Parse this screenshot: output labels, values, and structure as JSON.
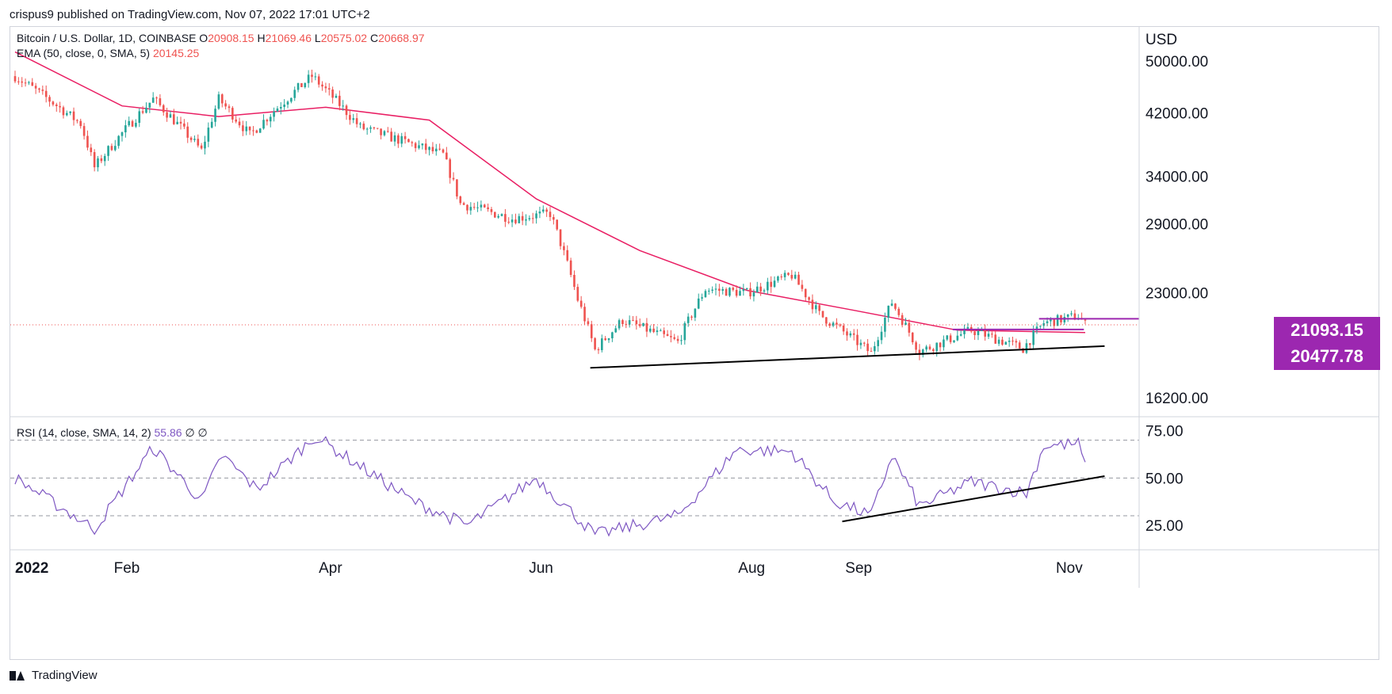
{
  "header": {
    "text": "crispus9 published on TradingView.com, Nov 07, 2022 17:01 UTC+2"
  },
  "legend": {
    "symbol": "Bitcoin / U.S. Dollar, 1D, COINBASE",
    "open_label": "O",
    "open": "20908.15",
    "high_label": "H",
    "high": "21069.46",
    "low_label": "L",
    "low": "20575.02",
    "close_label": "C",
    "close": "20668.97",
    "ema_label": "EMA (50, close, 0, SMA, 5)",
    "ema_value": "20145.25",
    "rsi_label": "RSI (14, close, SMA, 14, 2)",
    "rsi_value": "55.86",
    "rsi_extra": "∅ ∅"
  },
  "price_tags": {
    "upper": "21093.15",
    "lower": "20477.78"
  },
  "footer": {
    "brand": "TradingView"
  },
  "colors": {
    "up": "#26a69a",
    "down": "#ef5350",
    "ema": "#e91e63",
    "rsi": "#7e57c2",
    "tag": "#9c27b0",
    "trendline": "#000000",
    "level": "#9c27b0"
  },
  "chart_data": [
    {
      "type": "candlestick",
      "title": "Bitcoin / U.S. Dollar, 1D, COINBASE",
      "y_axis_unit": "USD",
      "y_scale": "log",
      "y_ticks": [
        "50000.00",
        "42000.00",
        "34000.00",
        "29000.00",
        "23000.00",
        "16200.00"
      ],
      "ylim": [
        15200,
        56000
      ],
      "x_ticks": [
        "2022",
        "Feb",
        "Apr",
        "Jun",
        "Aug",
        "Sep",
        "Nov"
      ],
      "x_tick_dates": [
        "2022-01-01",
        "2022-02-01",
        "2022-04-01",
        "2022-06-01",
        "2022-08-01",
        "2022-09-01",
        "2022-11-01"
      ],
      "xlim": [
        "2022-01-01",
        "2022-11-24"
      ],
      "key_points": [
        {
          "date": "2022-01-01",
          "close": 47500
        },
        {
          "date": "2022-01-20",
          "close": 40500
        },
        {
          "date": "2022-01-24",
          "close": 35000
        },
        {
          "date": "2022-02-10",
          "close": 44000
        },
        {
          "date": "2022-02-24",
          "close": 37000
        },
        {
          "date": "2022-03-01",
          "close": 44000
        },
        {
          "date": "2022-03-10",
          "close": 39000
        },
        {
          "date": "2022-03-28",
          "close": 47500
        },
        {
          "date": "2022-04-11",
          "close": 40000
        },
        {
          "date": "2022-05-05",
          "close": 36500
        },
        {
          "date": "2022-05-10",
          "close": 31000
        },
        {
          "date": "2022-05-25",
          "close": 29500
        },
        {
          "date": "2022-06-05",
          "close": 30000
        },
        {
          "date": "2022-06-13",
          "close": 22500
        },
        {
          "date": "2022-06-18",
          "close": 19000
        },
        {
          "date": "2022-06-26",
          "close": 21000
        },
        {
          "date": "2022-07-12",
          "close": 19500
        },
        {
          "date": "2022-07-20",
          "close": 23300
        },
        {
          "date": "2022-08-01",
          "close": 23000
        },
        {
          "date": "2022-08-14",
          "close": 24400
        },
        {
          "date": "2022-08-22",
          "close": 21400
        },
        {
          "date": "2022-09-06",
          "close": 18800
        },
        {
          "date": "2022-09-12",
          "close": 22300
        },
        {
          "date": "2022-09-20",
          "close": 18900
        },
        {
          "date": "2022-10-05",
          "close": 20300
        },
        {
          "date": "2022-10-20",
          "close": 19100
        },
        {
          "date": "2022-10-26",
          "close": 20800
        },
        {
          "date": "2022-11-05",
          "close": 21300
        },
        {
          "date": "2022-11-07",
          "close": 20669
        }
      ],
      "ema": {
        "name": "EMA (50, close, 0, SMA, 5)",
        "points": [
          {
            "date": "2022-01-01",
            "value": 51500
          },
          {
            "date": "2022-02-01",
            "value": 43000
          },
          {
            "date": "2022-03-01",
            "value": 41500
          },
          {
            "date": "2022-04-01",
            "value": 42800
          },
          {
            "date": "2022-05-01",
            "value": 41000
          },
          {
            "date": "2022-06-01",
            "value": 31500
          },
          {
            "date": "2022-07-01",
            "value": 26500
          },
          {
            "date": "2022-08-01",
            "value": 23200
          },
          {
            "date": "2022-09-01",
            "value": 21700
          },
          {
            "date": "2022-10-01",
            "value": 20300
          },
          {
            "date": "2022-11-07",
            "value": 20145
          }
        ]
      },
      "trendline": {
        "start": {
          "date": "2022-06-18",
          "value": 17900
        },
        "end": {
          "date": "2022-11-14",
          "value": 19250
        }
      },
      "resistance": {
        "start": {
          "date": "2022-10-01",
          "value": 20350
        },
        "end": {
          "date": "2022-11-08",
          "value": 20350
        }
      },
      "resistance_upper": {
        "start": {
          "date": "2022-10-26",
          "value": 21093.15
        },
        "end": {
          "date": "2022-11-08",
          "value": 21093.15
        }
      },
      "current_price": 20668.97
    },
    {
      "type": "line",
      "title": "RSI (14, close, SMA, 14, 2)",
      "y_ticks": [
        "75.00",
        "50.00",
        "25.00"
      ],
      "ylim": [
        12,
        82
      ],
      "reference_lines": [
        30,
        50,
        70
      ],
      "points": [
        {
          "date": "2022-01-01",
          "value": 50
        },
        {
          "date": "2022-01-24",
          "value": 23
        },
        {
          "date": "2022-02-10",
          "value": 66
        },
        {
          "date": "2022-02-24",
          "value": 38
        },
        {
          "date": "2022-03-02",
          "value": 62
        },
        {
          "date": "2022-03-12",
          "value": 44
        },
        {
          "date": "2022-03-29",
          "value": 72
        },
        {
          "date": "2022-04-26",
          "value": 38
        },
        {
          "date": "2022-05-12",
          "value": 25
        },
        {
          "date": "2022-06-01",
          "value": 50
        },
        {
          "date": "2022-06-18",
          "value": 20
        },
        {
          "date": "2022-07-12",
          "value": 30
        },
        {
          "date": "2022-07-29",
          "value": 65
        },
        {
          "date": "2022-08-14",
          "value": 64
        },
        {
          "date": "2022-08-26",
          "value": 38
        },
        {
          "date": "2022-09-06",
          "value": 30
        },
        {
          "date": "2022-09-12",
          "value": 62
        },
        {
          "date": "2022-09-20",
          "value": 35
        },
        {
          "date": "2022-10-05",
          "value": 48
        },
        {
          "date": "2022-10-21",
          "value": 42
        },
        {
          "date": "2022-10-26",
          "value": 67
        },
        {
          "date": "2022-11-05",
          "value": 68
        },
        {
          "date": "2022-11-07",
          "value": 56
        }
      ],
      "trendline": {
        "start": {
          "date": "2022-08-30",
          "value": 27
        },
        "end": {
          "date": "2022-11-14",
          "value": 51
        }
      }
    }
  ]
}
